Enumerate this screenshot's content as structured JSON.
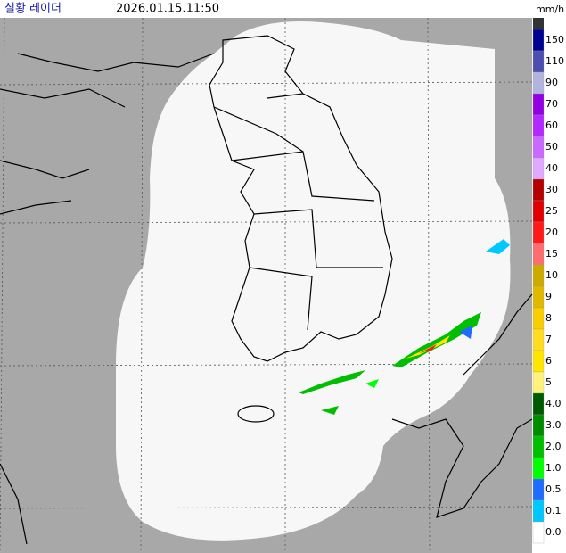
{
  "header": {
    "title": "실황 레이더",
    "timestamp": "2026.01.15.11:50"
  },
  "legend": {
    "unit": "mm/h",
    "items": [
      {
        "label": "150",
        "color": "#000390"
      },
      {
        "label": "110",
        "color": "#4c4eb1"
      },
      {
        "label": "90",
        "color": "#b3b4de"
      },
      {
        "label": "70",
        "color": "#9300e4"
      },
      {
        "label": "60",
        "color": "#b329ff"
      },
      {
        "label": "50",
        "color": "#c969ff"
      },
      {
        "label": "40",
        "color": "#e0a9ff"
      },
      {
        "label": "30",
        "color": "#b40000"
      },
      {
        "label": "25",
        "color": "#e00000"
      },
      {
        "label": "20",
        "color": "#ff1a1a"
      },
      {
        "label": "15",
        "color": "#ff6e6e"
      },
      {
        "label": "10",
        "color": "#ccaa00"
      },
      {
        "label": "9",
        "color": "#e0b900"
      },
      {
        "label": "8",
        "color": "#f9cd00"
      },
      {
        "label": "7",
        "color": "#ffdc1f"
      },
      {
        "label": "6",
        "color": "#ffe600"
      },
      {
        "label": "5",
        "color": "#fff27a"
      },
      {
        "label": "4.0",
        "color": "#005a00"
      },
      {
        "label": "3.0",
        "color": "#008c00"
      },
      {
        "label": "2.0",
        "color": "#00be00"
      },
      {
        "label": "1.0",
        "color": "#00ff00"
      },
      {
        "label": "0.5",
        "color": "#1f6cff"
      },
      {
        "label": "0.1",
        "color": "#00c8ff"
      },
      {
        "label": "0.0",
        "color": "#ffffff"
      }
    ]
  }
}
